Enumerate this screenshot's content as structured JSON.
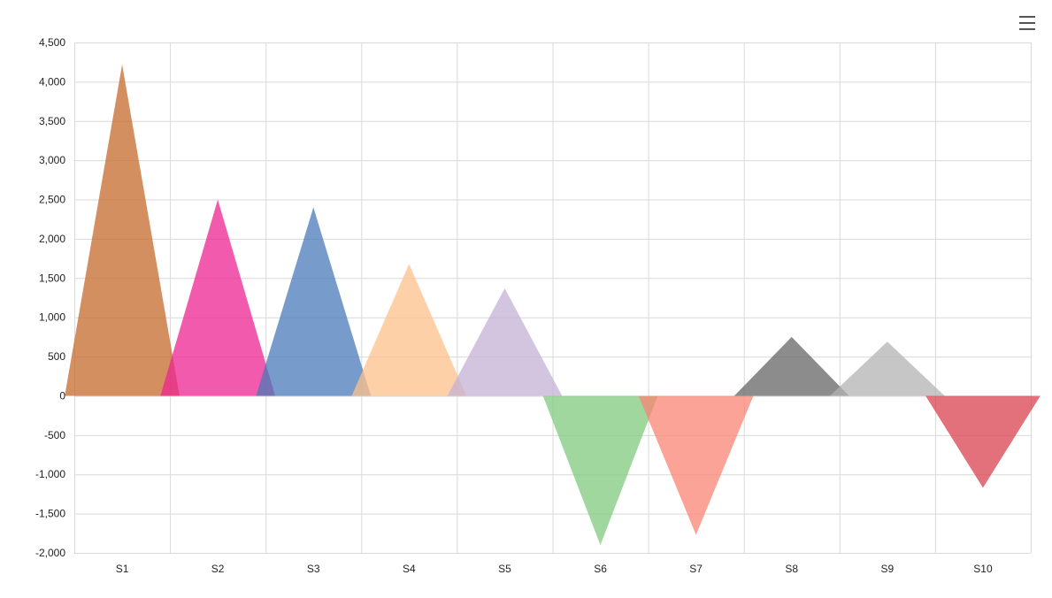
{
  "menu": {
    "icon": "hamburger-menu-icon"
  },
  "chart_data": {
    "type": "area",
    "title": "",
    "xlabel": "",
    "ylabel": "",
    "categories": [
      "S1",
      "S2",
      "S3",
      "S4",
      "S5",
      "S6",
      "S7",
      "S8",
      "S9",
      "S10"
    ],
    "values": [
      4220,
      2500,
      2400,
      1680,
      1370,
      -1900,
      -1770,
      750,
      690,
      -1170
    ],
    "colors": [
      "#c56a2c",
      "#ee2491",
      "#4a7ab8",
      "#fdc08a",
      "#c4b2d6",
      "#7fca7f",
      "#fa8473",
      "#666666",
      "#b3b3b3",
      "#d8424f"
    ],
    "ylim": [
      -2000,
      4500
    ],
    "yticks": [
      "4,500",
      "4,000",
      "3,500",
      "3,000",
      "2,500",
      "2,000",
      "1,500",
      "1,000",
      "500",
      "0",
      "-500",
      "-1,000",
      "-1,500",
      "-2,000"
    ],
    "grid": true,
    "legend": "none"
  }
}
